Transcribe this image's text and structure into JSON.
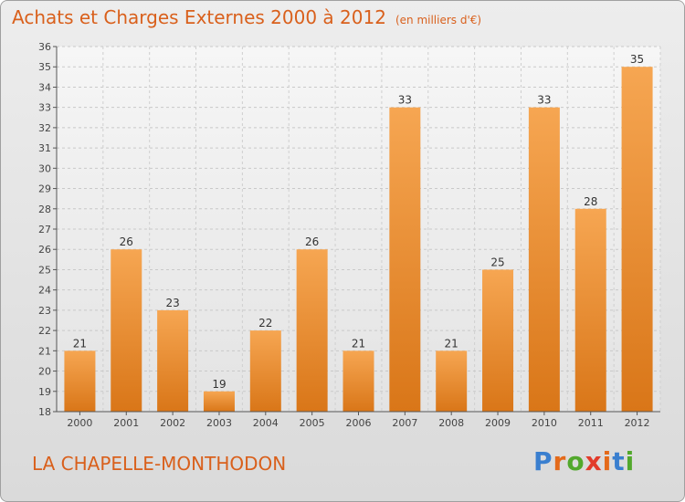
{
  "title": "Achats et Charges Externes 2000 à 2012",
  "subtitle": "(en milliers d'€)",
  "commune": "LA CHAPELLE-MONTHODON",
  "logo": {
    "letters": [
      "P",
      "r",
      "o",
      "x",
      "i",
      "t",
      "i"
    ],
    "colors": [
      "#3a7fcf",
      "#e46a1a",
      "#52a82c",
      "#e23b2b",
      "#e46a1a",
      "#3a7fcf",
      "#52a82c"
    ]
  },
  "colors": {
    "bar_light": "#f6a652",
    "bar_dark": "#d97618",
    "title": "#d9601c"
  },
  "chart_data": {
    "type": "bar",
    "title": "Achats et Charges Externes 2000 à 2012",
    "subtitle": "(en milliers d'€)",
    "categories": [
      "2000",
      "2001",
      "2002",
      "2003",
      "2004",
      "2005",
      "2006",
      "2007",
      "2008",
      "2009",
      "2010",
      "2011",
      "2012"
    ],
    "values": [
      21,
      26,
      23,
      19,
      22,
      26,
      21,
      33,
      21,
      25,
      33,
      28,
      35
    ],
    "ylim": [
      18,
      36
    ],
    "yticks": [
      18,
      19,
      20,
      21,
      22,
      23,
      24,
      25,
      26,
      27,
      28,
      29,
      30,
      31,
      32,
      33,
      34,
      35,
      36
    ],
    "grid": true,
    "data_labels": true
  }
}
